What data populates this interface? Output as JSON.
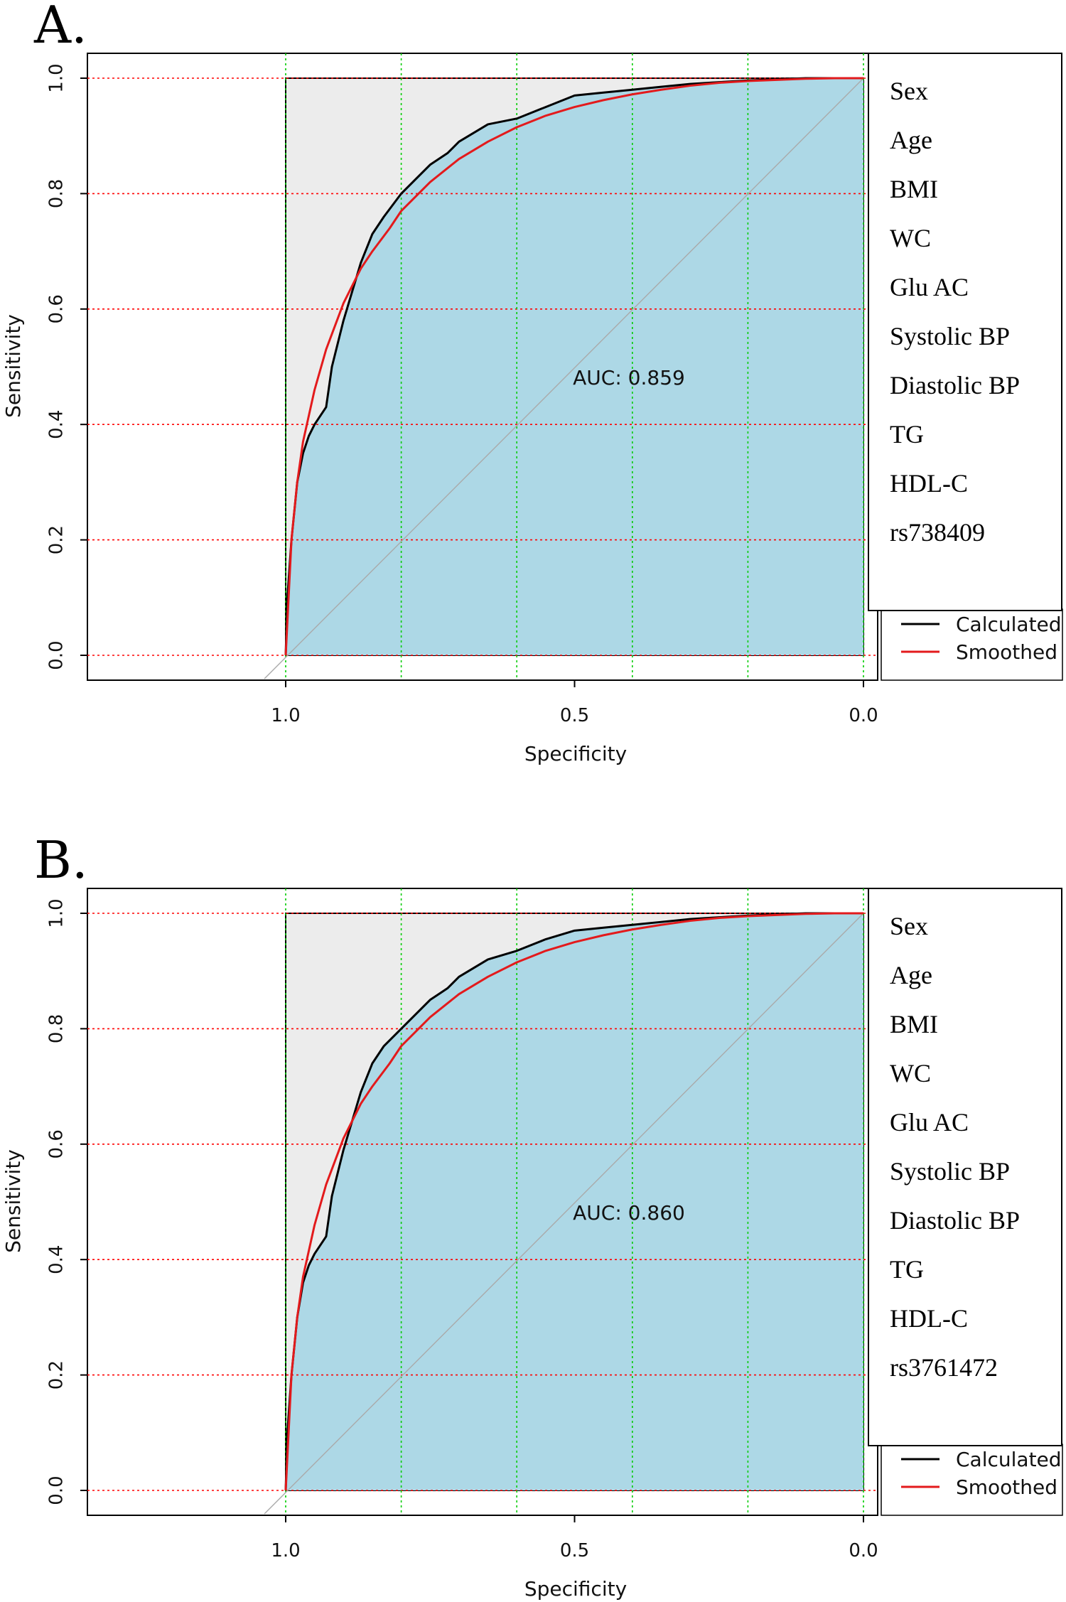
{
  "chart_data": [
    {
      "type": "line",
      "panel_label": "A.",
      "xlabel": "Specificity",
      "ylabel": "Sensitivity",
      "xlim": [
        1.0,
        0.0
      ],
      "ylim": [
        0.0,
        1.0
      ],
      "x_ticks": [
        "1.0",
        "0.5",
        "0.0"
      ],
      "y_ticks": [
        "0.0",
        "0.2",
        "0.4",
        "0.6",
        "0.8",
        "1.0"
      ],
      "x_grid": [
        1.0,
        0.8,
        0.6,
        0.4,
        0.2,
        0.0
      ],
      "y_grid": [
        0.0,
        0.2,
        0.4,
        0.6,
        0.8,
        1.0
      ],
      "auc_label": "AUC: 0.859",
      "variables": [
        "Sex",
        "Age",
        "BMI",
        "WC",
        "Glu AC",
        "Systolic BP",
        "Diastolic BP",
        "TG",
        "HDL-C",
        "rs738409"
      ],
      "series": [
        {
          "name": "Calculated",
          "color": "#000000",
          "x": [
            1.0,
            0.997,
            0.99,
            0.98,
            0.97,
            0.96,
            0.95,
            0.93,
            0.92,
            0.9,
            0.885,
            0.87,
            0.85,
            0.83,
            0.8,
            0.78,
            0.75,
            0.72,
            0.7,
            0.65,
            0.6,
            0.55,
            0.5,
            0.45,
            0.4,
            0.35,
            0.3,
            0.25,
            0.2,
            0.15,
            0.1,
            0.05,
            0.0
          ],
          "y": [
            0.0,
            0.1,
            0.2,
            0.3,
            0.35,
            0.38,
            0.4,
            0.43,
            0.5,
            0.58,
            0.63,
            0.68,
            0.73,
            0.76,
            0.8,
            0.82,
            0.85,
            0.87,
            0.89,
            0.92,
            0.93,
            0.95,
            0.97,
            0.975,
            0.98,
            0.985,
            0.99,
            0.993,
            0.996,
            0.998,
            1.0,
            1.0,
            1.0
          ]
        },
        {
          "name": "Smoothed",
          "color": "#e31a1c",
          "x": [
            1.0,
            0.99,
            0.98,
            0.97,
            0.95,
            0.93,
            0.9,
            0.87,
            0.85,
            0.82,
            0.8,
            0.75,
            0.7,
            0.65,
            0.6,
            0.55,
            0.5,
            0.45,
            0.4,
            0.35,
            0.3,
            0.25,
            0.2,
            0.15,
            0.1,
            0.05,
            0.0
          ],
          "y": [
            0.0,
            0.2,
            0.3,
            0.37,
            0.46,
            0.53,
            0.61,
            0.67,
            0.7,
            0.74,
            0.77,
            0.82,
            0.86,
            0.89,
            0.915,
            0.935,
            0.95,
            0.962,
            0.972,
            0.98,
            0.987,
            0.992,
            0.995,
            0.997,
            0.999,
            1.0,
            1.0
          ]
        }
      ],
      "legend": [
        "Calculated",
        "Smoothed"
      ],
      "legend_position": "right",
      "colors": {
        "roc_fill": "#add8e6",
        "plot_bg": "#ececec",
        "h_grid": "#ff0000",
        "v_grid": "#00cc00",
        "diagonal": "#aaaaaa"
      }
    },
    {
      "type": "line",
      "panel_label": "B.",
      "xlabel": "Specificity",
      "ylabel": "Sensitivity",
      "xlim": [
        1.0,
        0.0
      ],
      "ylim": [
        0.0,
        1.0
      ],
      "x_ticks": [
        "1.0",
        "0.5",
        "0.0"
      ],
      "y_ticks": [
        "0.0",
        "0.2",
        "0.4",
        "0.6",
        "0.8",
        "1.0"
      ],
      "x_grid": [
        1.0,
        0.8,
        0.6,
        0.4,
        0.2,
        0.0
      ],
      "y_grid": [
        0.0,
        0.2,
        0.4,
        0.6,
        0.8,
        1.0
      ],
      "auc_label": "AUC: 0.860",
      "variables": [
        "Sex",
        "Age",
        "BMI",
        "WC",
        "Glu AC",
        "Systolic BP",
        "Diastolic BP",
        "TG",
        "HDL-C",
        "rs3761472"
      ],
      "series": [
        {
          "name": "Calculated",
          "color": "#000000",
          "x": [
            1.0,
            0.997,
            0.99,
            0.98,
            0.97,
            0.96,
            0.95,
            0.93,
            0.92,
            0.9,
            0.885,
            0.87,
            0.85,
            0.83,
            0.8,
            0.78,
            0.75,
            0.72,
            0.7,
            0.65,
            0.6,
            0.55,
            0.5,
            0.45,
            0.4,
            0.35,
            0.3,
            0.25,
            0.2,
            0.15,
            0.1,
            0.05,
            0.0
          ],
          "y": [
            0.0,
            0.1,
            0.2,
            0.3,
            0.36,
            0.39,
            0.41,
            0.44,
            0.51,
            0.59,
            0.64,
            0.69,
            0.74,
            0.77,
            0.8,
            0.82,
            0.85,
            0.87,
            0.89,
            0.92,
            0.935,
            0.955,
            0.97,
            0.975,
            0.98,
            0.985,
            0.99,
            0.993,
            0.996,
            0.998,
            1.0,
            1.0,
            1.0
          ]
        },
        {
          "name": "Smoothed",
          "color": "#e31a1c",
          "x": [
            1.0,
            0.99,
            0.98,
            0.97,
            0.95,
            0.93,
            0.9,
            0.87,
            0.85,
            0.82,
            0.8,
            0.75,
            0.7,
            0.65,
            0.6,
            0.55,
            0.5,
            0.45,
            0.4,
            0.35,
            0.3,
            0.25,
            0.2,
            0.15,
            0.1,
            0.05,
            0.0
          ],
          "y": [
            0.0,
            0.2,
            0.3,
            0.37,
            0.46,
            0.53,
            0.61,
            0.67,
            0.7,
            0.74,
            0.77,
            0.82,
            0.86,
            0.89,
            0.915,
            0.935,
            0.95,
            0.962,
            0.972,
            0.98,
            0.987,
            0.992,
            0.995,
            0.997,
            0.999,
            1.0,
            1.0
          ]
        }
      ],
      "legend": [
        "Calculated",
        "Smoothed"
      ],
      "legend_position": "right",
      "colors": {
        "roc_fill": "#add8e6",
        "plot_bg": "#ececec",
        "h_grid": "#ff0000",
        "v_grid": "#00cc00",
        "diagonal": "#aaaaaa"
      }
    }
  ]
}
